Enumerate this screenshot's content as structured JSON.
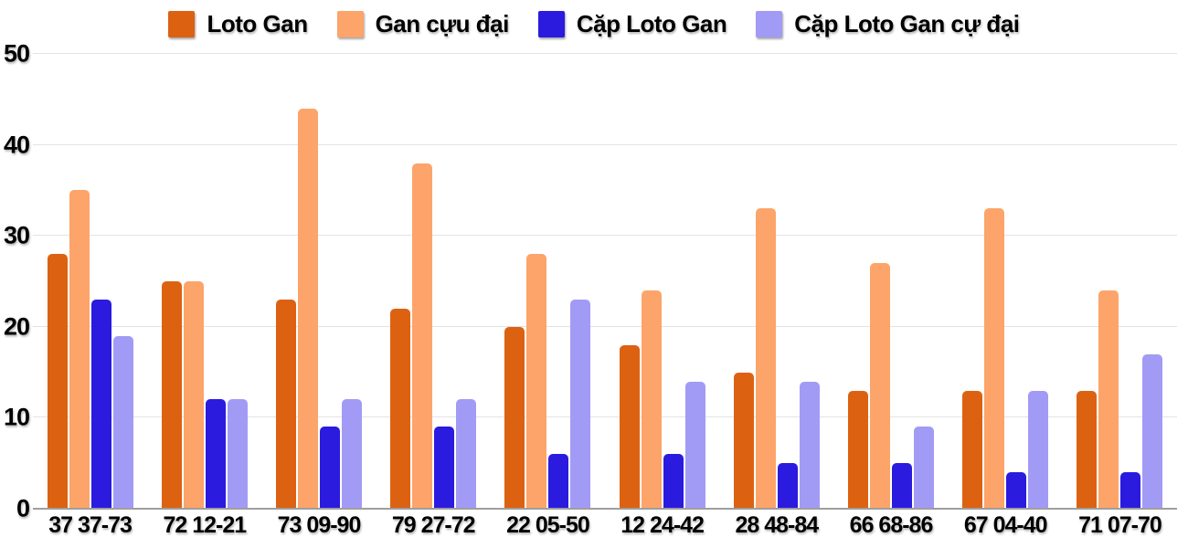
{
  "chart_data": {
    "type": "bar",
    "title": "",
    "xlabel": "",
    "ylabel": "",
    "ylim": [
      0,
      50
    ],
    "y_ticks": [
      0,
      10,
      20,
      30,
      40,
      50
    ],
    "grid": "horizontal",
    "legend_position": "top",
    "categories": [
      "37 37-73",
      "72 12-21",
      "73 09-90",
      "79 27-72",
      "22 05-50",
      "12 24-42",
      "28 48-84",
      "66 68-86",
      "67 04-40",
      "71 07-70"
    ],
    "series": [
      {
        "name": "Loto Gan",
        "color": "#DC6212",
        "values": [
          28,
          25,
          23,
          22,
          20,
          18,
          15,
          13,
          13,
          13
        ]
      },
      {
        "name": "Gan cựu đại",
        "color": "#FCA469",
        "values": [
          35,
          25,
          44,
          38,
          28,
          24,
          33,
          27,
          33,
          24
        ]
      },
      {
        "name": "Cặp Loto Gan",
        "color": "#2A1BDF",
        "values": [
          23,
          12,
          9,
          9,
          6,
          6,
          5,
          5,
          4,
          4
        ]
      },
      {
        "name": "Cặp Loto Gan cự đại",
        "color": "#A29BF5",
        "values": [
          19,
          12,
          12,
          12,
          23,
          14,
          14,
          9,
          13,
          17
        ]
      }
    ]
  },
  "colors": {
    "background": "#FFFFFF",
    "gridline": "#E3E3E3",
    "axis_line": "#9E9E9E",
    "text": "#000000"
  }
}
